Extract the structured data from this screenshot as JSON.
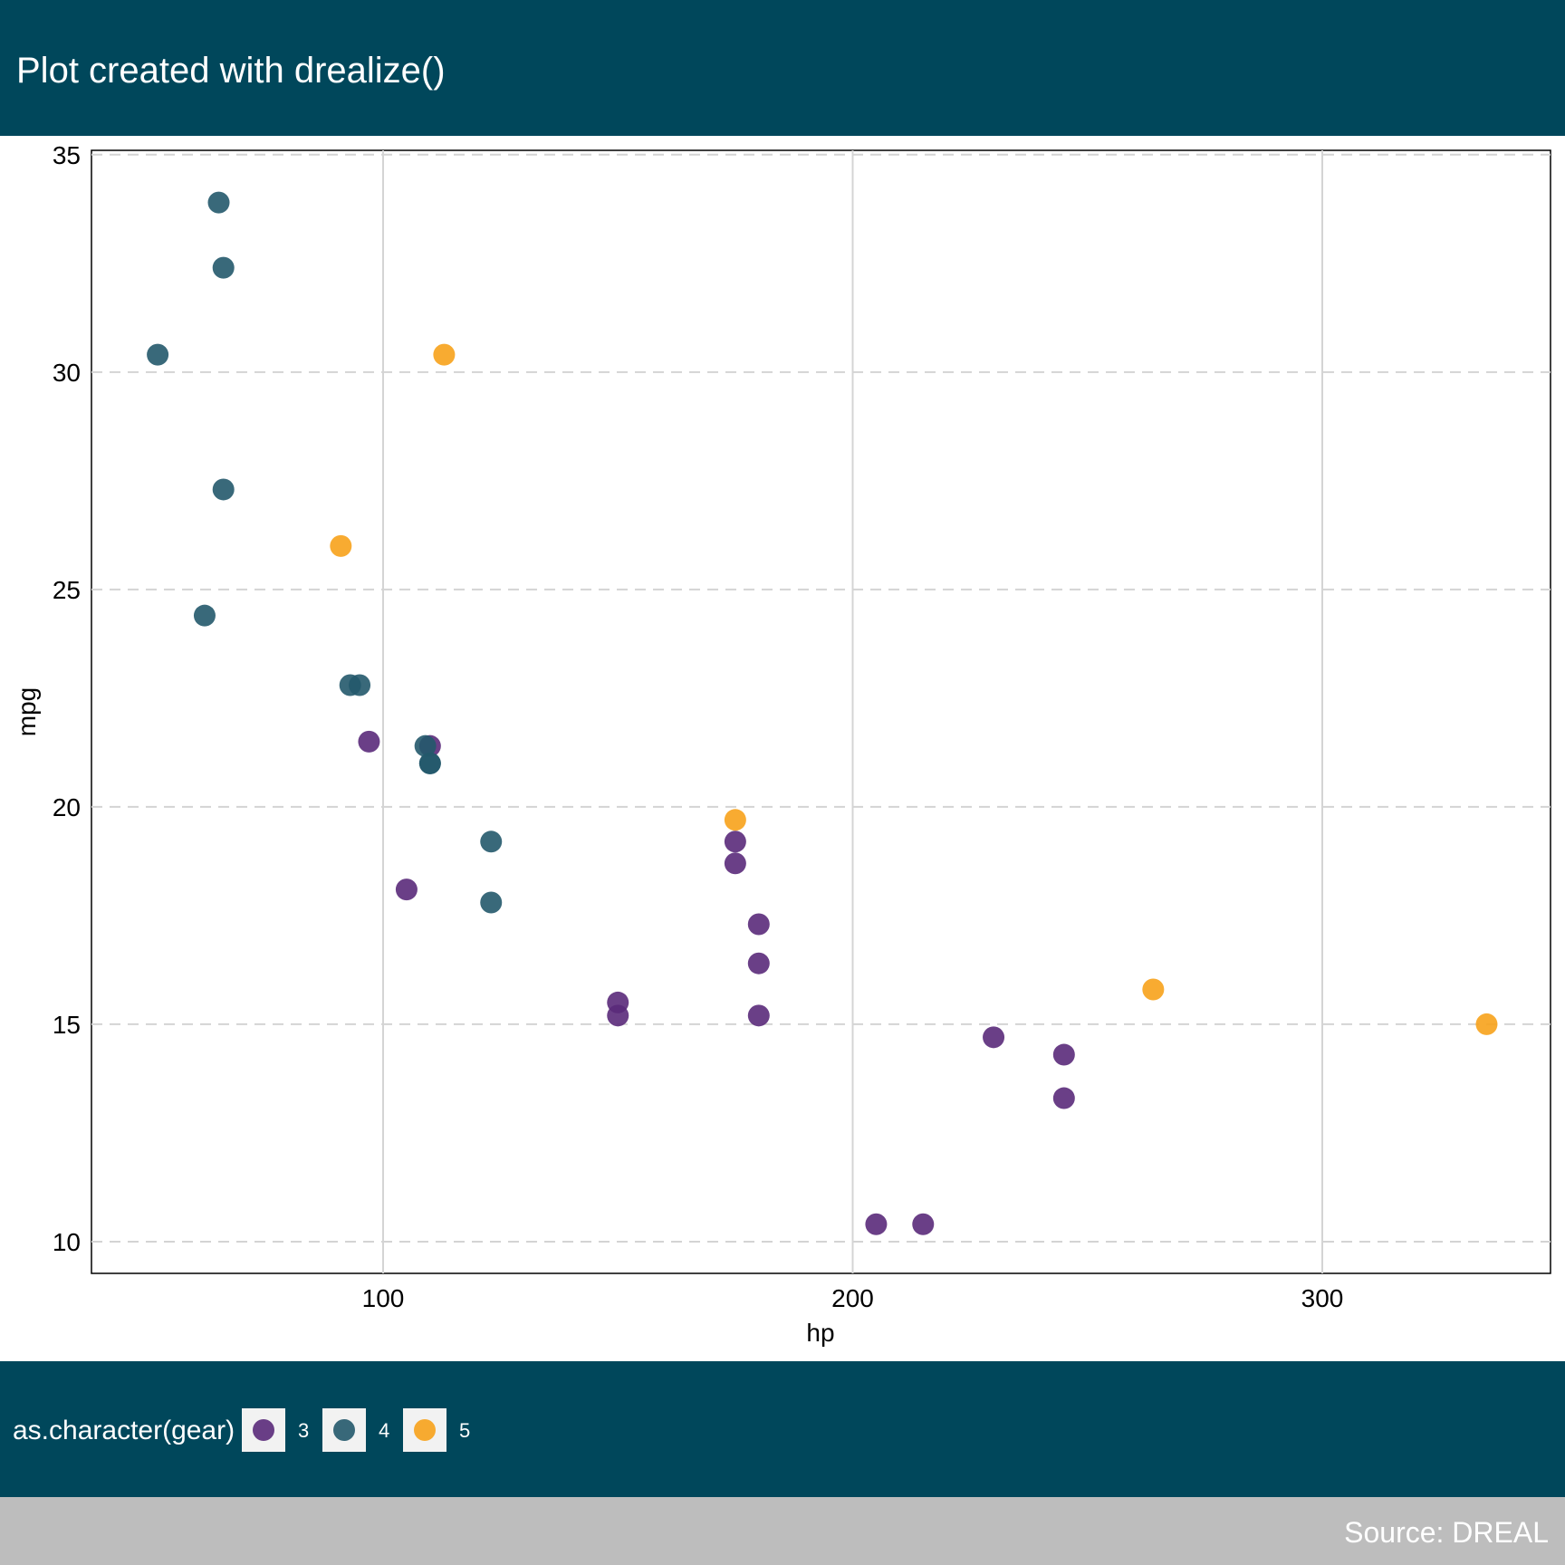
{
  "header": {
    "title": "Plot created with drealize()"
  },
  "footer": {
    "caption": "Source: DREAL"
  },
  "colors": {
    "banner": "#00475b",
    "caption_band": "#bdbdbd",
    "gear_3": "#5a2a7a",
    "gear_4": "#23596b",
    "gear_5": "#f7a21b",
    "gridline": "#d4d4d4"
  },
  "chart_data": {
    "type": "scatter",
    "title": "Plot created with drealize()",
    "xlabel": "hp",
    "ylabel": "mpg",
    "xlim": [
      37.9,
      348.6
    ],
    "ylim": [
      9.27,
      35.1
    ],
    "xticks": [
      100,
      200,
      300
    ],
    "yticks": [
      10,
      15,
      20,
      25,
      30,
      35
    ],
    "grid": {
      "vertical": "solid",
      "horizontal": "dashed"
    },
    "legend": {
      "title": "as.character(gear)",
      "position": "bottom",
      "entries": [
        "3",
        "4",
        "5"
      ]
    },
    "series": [
      {
        "name": "3",
        "color": "#5a2a7a",
        "points": [
          [
            110,
            21.4
          ],
          [
            175,
            18.7
          ],
          [
            105,
            18.1
          ],
          [
            245,
            14.3
          ],
          [
            180,
            16.4
          ],
          [
            180,
            17.3
          ],
          [
            180,
            15.2
          ],
          [
            205,
            10.4
          ],
          [
            215,
            10.4
          ],
          [
            230,
            14.7
          ],
          [
            97,
            21.5
          ],
          [
            150,
            15.5
          ],
          [
            150,
            15.2
          ],
          [
            245,
            13.3
          ],
          [
            175,
            19.2
          ]
        ]
      },
      {
        "name": "4",
        "color": "#23596b",
        "points": [
          [
            110,
            21.0
          ],
          [
            110,
            21.0
          ],
          [
            93,
            22.8
          ],
          [
            62,
            24.4
          ],
          [
            95,
            22.8
          ],
          [
            123,
            19.2
          ],
          [
            123,
            17.8
          ],
          [
            66,
            32.4
          ],
          [
            52,
            30.4
          ],
          [
            65,
            33.9
          ],
          [
            66,
            27.3
          ],
          [
            109,
            21.4
          ]
        ]
      },
      {
        "name": "5",
        "color": "#f7a21b",
        "points": [
          [
            91,
            26.0
          ],
          [
            113,
            30.4
          ],
          [
            264,
            15.8
          ],
          [
            175,
            19.7
          ],
          [
            335,
            15.0
          ]
        ]
      }
    ]
  }
}
